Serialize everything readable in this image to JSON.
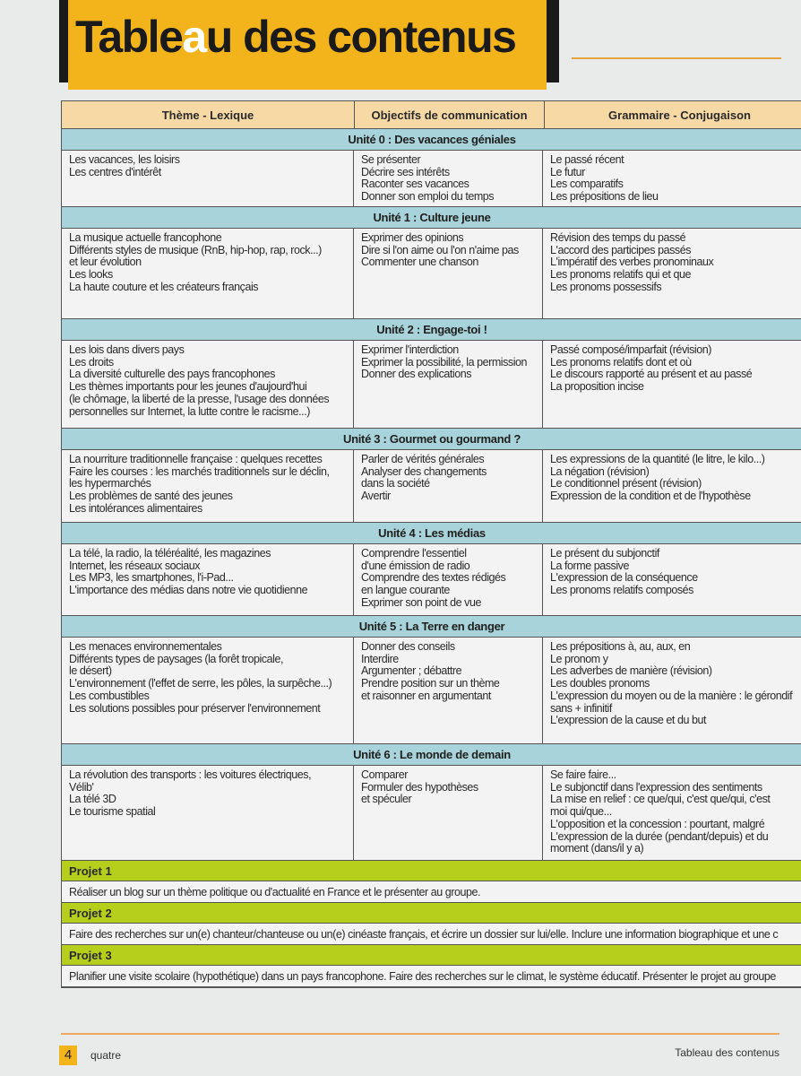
{
  "header": {
    "title_before": "Table",
    "title_accent": "a",
    "title_after": "u des contenus"
  },
  "table": {
    "columns": [
      "Thème - Lexique",
      "Objectifs de communication",
      "Grammaire - Conjugaison"
    ],
    "units": [
      {
        "title": "Unité 0 : Des vacances géniales",
        "theme": [
          "Les vacances, les loisirs",
          "Les centres d'intérêt"
        ],
        "objectifs": [
          "Se présenter",
          "Décrire ses intérêts",
          "Raconter ses vacances",
          "Donner son emploi du temps"
        ],
        "grammaire": [
          "Le passé récent",
          "Le futur",
          "Les comparatifs",
          "Les prépositions de lieu"
        ]
      },
      {
        "title": "Unité 1 : Culture jeune",
        "theme": [
          "La musique actuelle francophone",
          "Différents styles de musique (RnB, hip-hop, rap, rock...)",
          "et leur évolution",
          "Les looks",
          "La haute couture et les créateurs français"
        ],
        "objectifs": [
          "Exprimer des opinions",
          "Dire si l'on aime ou l'on n'aime pas",
          "Commenter une chanson"
        ],
        "grammaire": [
          "Révision des temps du passé",
          "L'accord des participes passés",
          "L'impératif des verbes pronominaux",
          "Les pronoms relatifs qui et que",
          "Les pronoms possessifs"
        ]
      },
      {
        "title": "Unité 2 : Engage-toi !",
        "theme": [
          "Les lois dans divers pays",
          "Les droits",
          "La diversité culturelle des pays francophones",
          "Les thèmes importants pour les jeunes d'aujourd'hui",
          "(le chômage, la liberté de la presse, l'usage des données",
          "personnelles sur Internet, la lutte contre le racisme...)"
        ],
        "objectifs": [
          "Exprimer l'interdiction",
          "Exprimer la possibilité, la permission",
          "Donner des explications"
        ],
        "grammaire": [
          "Passé composé/imparfait (révision)",
          "Les pronoms relatifs dont et où",
          "Le discours rapporté au présent et au passé",
          "La proposition incise"
        ]
      },
      {
        "title": "Unité 3 : Gourmet ou gourmand ?",
        "theme": [
          "La nourriture traditionnelle française : quelques recettes",
          "Faire les courses : les marchés traditionnels sur le déclin,",
          "les hypermarchés",
          "Les problèmes de santé des jeunes",
          "Les intolérances alimentaires"
        ],
        "objectifs": [
          "Parler de vérités générales",
          "Analyser des changements",
          "dans la société",
          "Avertir"
        ],
        "grammaire": [
          "Les expressions de la quantité (le litre, le kilo...)",
          "La négation (révision)",
          "Le conditionnel présent (révision)",
          "Expression de la condition et de l'hypothèse"
        ]
      },
      {
        "title": "Unité 4 : Les médias",
        "theme": [
          "La télé, la radio, la téléréalité, les magazines",
          "Internet, les réseaux sociaux",
          "Les MP3, les smartphones, l'i-Pad...",
          "L'importance des médias dans notre vie quotidienne"
        ],
        "objectifs": [
          "Comprendre l'essentiel",
          "d'une émission de radio",
          "Comprendre des textes rédigés",
          "en langue courante",
          "Exprimer son point de vue"
        ],
        "grammaire": [
          "Le présent du subjonctif",
          "La forme passive",
          "L'expression de la conséquence",
          "Les pronoms relatifs composés"
        ]
      },
      {
        "title": "Unité 5 : La Terre en danger",
        "theme": [
          "Les menaces environnementales",
          "Différents types de paysages (la forêt tropicale,",
          "le désert)",
          "L'environnement (l'effet de serre, les pôles, la surpêche...)",
          "Les combustibles",
          "Les solutions possibles pour préserver l'environnement"
        ],
        "objectifs": [
          "Donner des conseils",
          "Interdire",
          "Argumenter ; débattre",
          "Prendre position sur un thème",
          "et raisonner en argumentant"
        ],
        "grammaire": [
          "Les prépositions à, au, aux, en",
          "Le pronom y",
          "Les adverbes de manière (révision)",
          "Les doubles pronoms",
          "L'expression du moyen ou de la manière : le gérondif",
          "sans + infinitif",
          "L'expression de la cause et du but"
        ]
      },
      {
        "title": "Unité 6 : Le monde de demain",
        "theme": [
          "La révolution des transports : les voitures électriques,",
          "Vélib'",
          "La télé 3D",
          "Le tourisme spatial"
        ],
        "objectifs": [
          "Comparer",
          "Formuler des hypothèses",
          "et spéculer"
        ],
        "grammaire": [
          "Se faire faire...",
          "Le subjonctif dans l'expression des sentiments",
          "La mise en relief : ce que/qui, c'est que/qui, c'est",
          "moi qui/que...",
          "L'opposition et la concession : pourtant, malgré",
          "L'expression de la durée (pendant/depuis) et du",
          "moment (dans/il y a)"
        ]
      }
    ],
    "projects": [
      {
        "title": "Projet 1",
        "text": "Réaliser un blog sur un thème politique ou d'actualité en France et le présenter au groupe."
      },
      {
        "title": "Projet 2",
        "text": "Faire des recherches sur un(e) chanteur/chanteuse ou un(e) cinéaste français, et écrire un dossier sur lui/elle. Inclure une information biographique et une c"
      },
      {
        "title": "Projet 3",
        "text": "Planifier une visite scolaire (hypothétique) dans un pays francophone. Faire des recherches sur le climat, le système éducatif. Présenter le projet au groupe"
      }
    ]
  },
  "footer": {
    "page_number": "4",
    "page_word": "quatre",
    "section_title": "Tableau des contenus"
  },
  "colors": {
    "title_yellow": "#f2b31b",
    "header_tan": "#f7d9a6",
    "unit_blue": "#a9d3da",
    "project_green": "#b6cf1c",
    "accent_orange": "#eaa23c"
  }
}
